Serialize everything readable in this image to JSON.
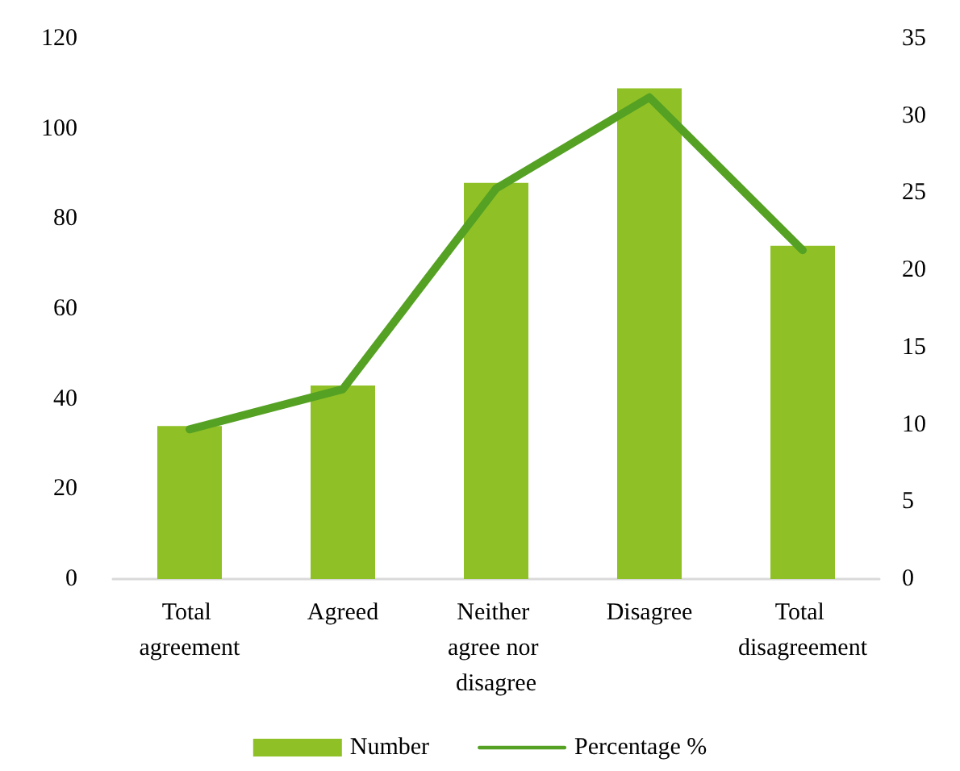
{
  "chart_data": {
    "type": "bar",
    "categories": [
      "Total agreement",
      "Agreed",
      "Neither agree nor disagree",
      "Disagree",
      "Total disagreement"
    ],
    "series": [
      {
        "name": "Number",
        "color": "#8fc127",
        "values": [
          34,
          43,
          88,
          109,
          74
        ]
      },
      {
        "name": "Percentage %",
        "type": "line",
        "axis": "y2",
        "color": "#55a123",
        "values": [
          9.7,
          12.3,
          25.3,
          31.2,
          21.3
        ]
      }
    ],
    "ylim": [
      0,
      120
    ],
    "yticks": [
      0,
      20,
      40,
      60,
      80,
      100,
      120
    ],
    "y2lim": [
      0,
      35
    ],
    "y2ticks": [
      0,
      5,
      10,
      15,
      20,
      25,
      30,
      35
    ],
    "grid": false,
    "legend": "bottom",
    "marker": "none",
    "line_style": "solid"
  }
}
